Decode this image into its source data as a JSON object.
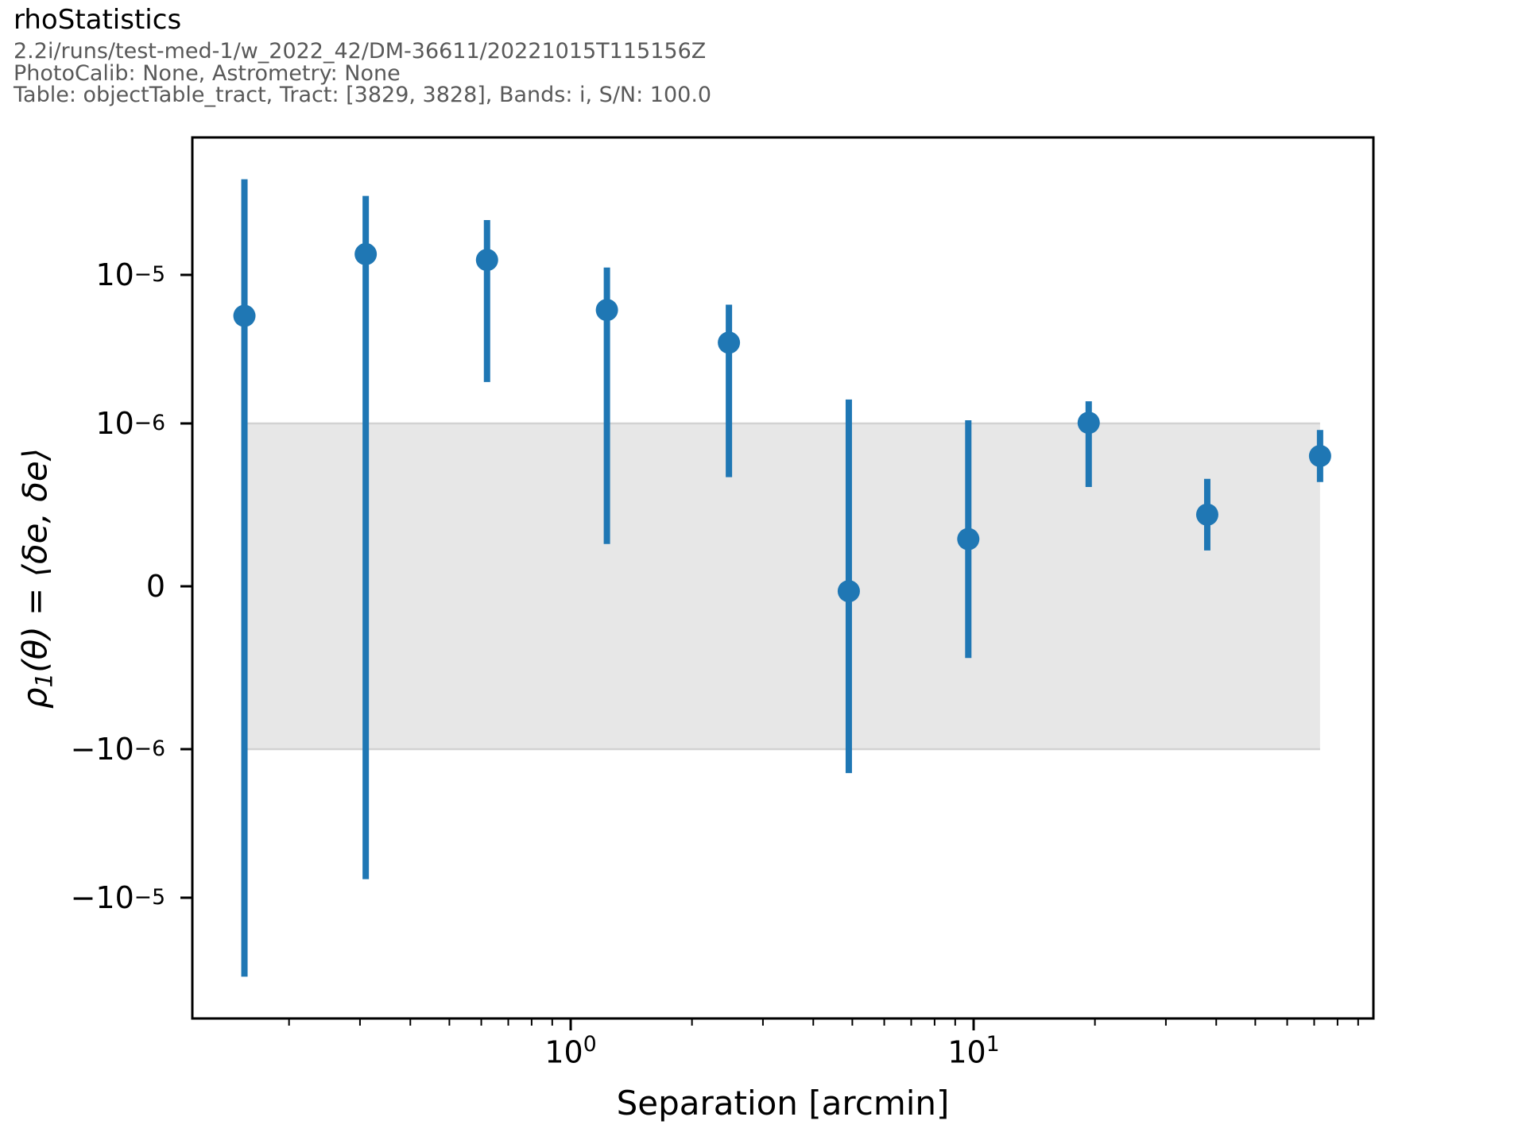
{
  "header": {
    "title": "rhoStatistics",
    "subtitle_lines": [
      "2.2i/runs/test-med-1/w_2022_42/DM-36611/20221015T115156Z",
      "PhotoCalib: None, Astrometry: None",
      "Table: objectTable_tract, Tract: [3829, 3828], Bands: i, S/N: 100.0"
    ]
  },
  "colors": {
    "series_blue": "#1f77b4",
    "band_fill": "#e7e7e7",
    "band_edge": "#d2d2d2",
    "axis_black": "#000000",
    "subtitle_gray": "#595959",
    "background": "#ffffff"
  },
  "chart_data": {
    "type": "scatter",
    "title": "rhoStatistics",
    "xlabel": "Separation [arcmin]",
    "ylabel": {
      "rho": "ρ",
      "sub": "1",
      "rest": "(θ) = ⟨δe, δe⟩"
    },
    "x_scale": "log",
    "y_scale": "symlog",
    "y_linthresh": 1e-06,
    "xlim": [
      0.1151,
      98.2
    ],
    "ylim": [
      -6.6e-05,
      8.5e-05
    ],
    "grid": false,
    "legend": "none",
    "x_ticks": [
      {
        "base": "10",
        "exp": "0",
        "value": 1
      },
      {
        "base": "10",
        "exp": "1",
        "value": 10
      }
    ],
    "y_ticks": [
      {
        "base": "10",
        "exp": "−5",
        "value": 1e-05
      },
      {
        "base": "10",
        "exp": "−6",
        "value": 1e-06
      },
      {
        "base": "0",
        "exp": "",
        "value": 0
      },
      {
        "base": "−10",
        "exp": "−6",
        "value": -1e-06
      },
      {
        "base": "−10",
        "exp": "−5",
        "value": -1e-05
      }
    ],
    "reference_band": {
      "y_min": -1e-06,
      "y_max": 1e-06,
      "x_min": 0.155,
      "x_max": 72.4
    },
    "series": [
      {
        "name": "rho1-errorbar",
        "color": "#1f77b4",
        "points": [
          {
            "x": 0.155,
            "y": 5.3e-06,
            "y_lo": -3.4e-05,
            "y_hi": 4.4e-05
          },
          {
            "x": 0.31,
            "y": 1.38e-05,
            "y_lo": -7.5e-06,
            "y_hi": 3.4e-05
          },
          {
            "x": 0.62,
            "y": 1.26e-05,
            "y_lo": 1.9e-06,
            "y_hi": 2.34e-05
          },
          {
            "x": 1.23,
            "y": 5.8e-06,
            "y_lo": 2.6e-07,
            "y_hi": 1.12e-05
          },
          {
            "x": 2.47,
            "y": 3.5e-06,
            "y_lo": 6.7e-07,
            "y_hi": 6.3e-06
          },
          {
            "x": 4.9,
            "y": -3e-08,
            "y_lo": -1.45e-06,
            "y_hi": 1.45e-06
          },
          {
            "x": 9.7,
            "y": 2.9e-07,
            "y_lo": -4.4e-07,
            "y_hi": 1.05e-06
          },
          {
            "x": 19.3,
            "y": 1.01e-06,
            "y_lo": 6.1e-07,
            "y_hi": 1.41e-06
          },
          {
            "x": 38.0,
            "y": 4.4e-07,
            "y_lo": 2.2e-07,
            "y_hi": 6.6e-07
          },
          {
            "x": 72.4,
            "y": 8e-07,
            "y_lo": 6.4e-07,
            "y_hi": 9.6e-07
          }
        ]
      }
    ]
  }
}
